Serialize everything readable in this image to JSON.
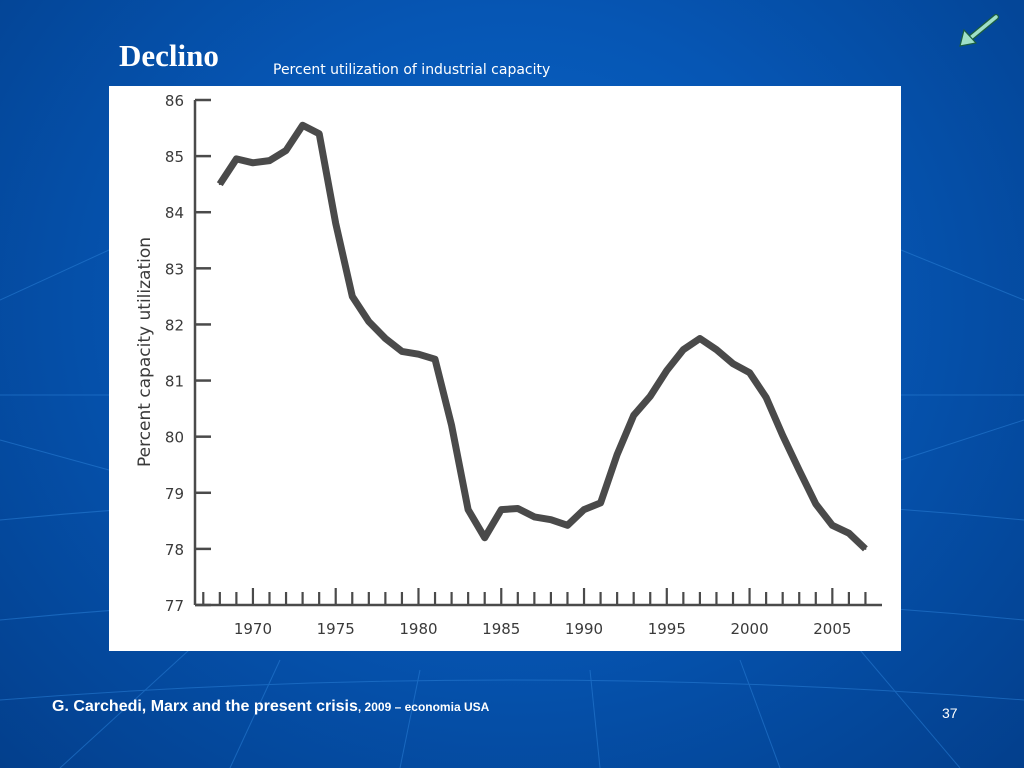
{
  "slide": {
    "title": "Declino",
    "subtitle": "Percent utilization of industrial capacity",
    "citation_main": "G. Carchedi, Marx and the present crisis",
    "citation_small": ", 2009 – economia USA",
    "page_number": "37",
    "back_icon": "back-arrow-icon"
  },
  "colors": {
    "background": "#0656b4",
    "arrow": "#9fe0c8",
    "line": "#4a4a4a"
  },
  "chart_data": {
    "type": "line",
    "title": "",
    "xlabel": "",
    "ylabel": "Percent capacity utilization",
    "xlim": [
      1966.5,
      2008.0
    ],
    "ylim": [
      77,
      86
    ],
    "yticks": [
      77,
      78,
      79,
      80,
      81,
      82,
      83,
      84,
      85,
      86
    ],
    "xticks": [
      1970,
      1975,
      1980,
      1985,
      1990,
      1995,
      2000,
      2005
    ],
    "grid": false,
    "series": [
      {
        "name": "Capacity utilization",
        "x": [
          1968,
          1969,
          1970,
          1971,
          1972,
          1973,
          1974,
          1975,
          1976,
          1977,
          1978,
          1979,
          1980,
          1981,
          1982,
          1983,
          1984,
          1985,
          1986,
          1987,
          1988,
          1989,
          1990,
          1991,
          1992,
          1993,
          1994,
          1995,
          1996,
          1997,
          1998,
          1999,
          2000,
          2001,
          2002,
          2003,
          2004,
          2005,
          2006,
          2007
        ],
        "values": [
          84.5,
          84.95,
          84.88,
          84.92,
          85.1,
          85.55,
          85.4,
          83.8,
          82.5,
          82.05,
          81.75,
          81.52,
          81.47,
          81.38,
          80.2,
          78.7,
          78.2,
          78.7,
          78.72,
          78.57,
          78.52,
          78.42,
          78.7,
          78.82,
          79.68,
          80.38,
          80.72,
          81.18,
          81.55,
          81.75,
          81.55,
          81.3,
          81.14,
          80.7,
          80.02,
          79.4,
          78.8,
          78.42,
          78.28,
          78.0
        ]
      }
    ]
  }
}
